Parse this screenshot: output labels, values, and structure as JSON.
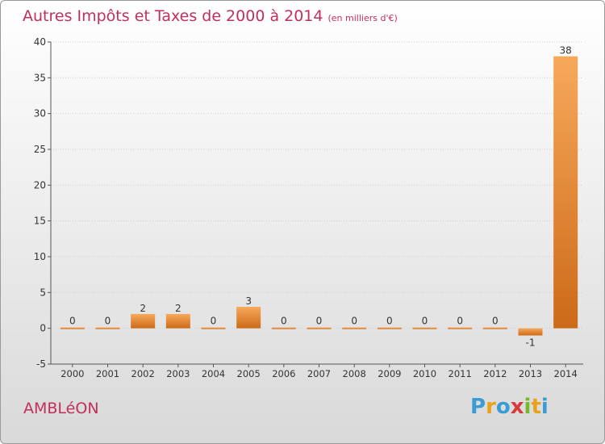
{
  "title": "Autres Impôts et Taxes de 2000 à 2014",
  "subtitle": "(en milliers d'€)",
  "commune": "AMBLéON",
  "logo": {
    "letters": [
      "P",
      "r",
      "o",
      "x",
      "i",
      "t",
      "i"
    ],
    "colors": [
      "#3a9bd5",
      "#e8a21c",
      "#3a9bd5",
      "#d63a3a",
      "#76b82a",
      "#e8a21c",
      "#3a9bd5"
    ]
  },
  "colors": {
    "title": "#c0305a",
    "bar_light": "#f7a95b",
    "bar_dark": "#cc6a18",
    "axis": "#555555",
    "grid": "#d0d0d0"
  },
  "chart_data": {
    "type": "bar",
    "title": "Autres Impôts et Taxes de 2000 à 2014",
    "subtitle": "(en milliers d'€)",
    "categories": [
      "2000",
      "2001",
      "2002",
      "2003",
      "2004",
      "2005",
      "2006",
      "2007",
      "2008",
      "2009",
      "2010",
      "2011",
      "2012",
      "2013",
      "2014"
    ],
    "values": [
      0,
      0,
      2,
      2,
      0,
      3,
      0,
      0,
      0,
      0,
      0,
      0,
      0,
      -1,
      38
    ],
    "data_labels": [
      "0",
      "0",
      "2",
      "2",
      "0",
      "3",
      "0",
      "0",
      "0",
      "0",
      "0",
      "0",
      "0",
      "-1",
      "38"
    ],
    "ylim": [
      -5,
      40
    ],
    "yticks": [
      "-5",
      "0",
      "5",
      "10",
      "15",
      "20",
      "25",
      "30",
      "35",
      "40"
    ],
    "ytick_values": [
      -5,
      0,
      5,
      10,
      15,
      20,
      25,
      30,
      35,
      40
    ],
    "grid": true,
    "xlabel": "",
    "ylabel": ""
  }
}
